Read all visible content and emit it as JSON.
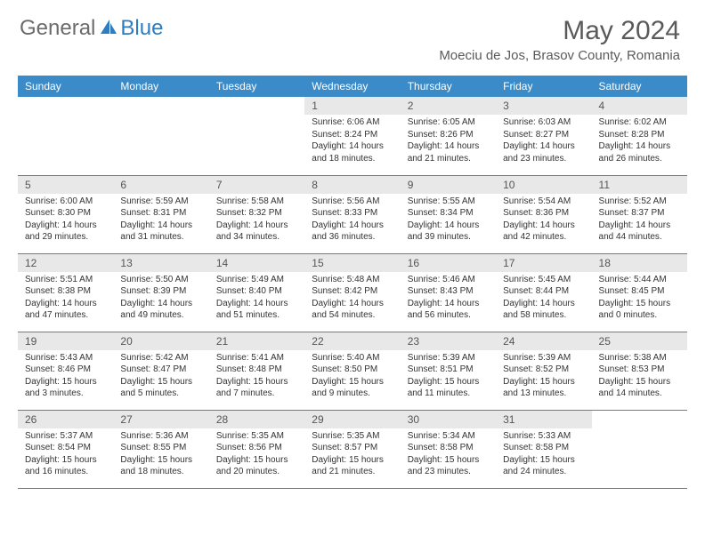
{
  "brand": {
    "part1": "General",
    "part2": "Blue"
  },
  "title": "May 2024",
  "location": "Moeciu de Jos, Brasov County, Romania",
  "colors": {
    "header_bg": "#3b8bc9",
    "header_text": "#ffffff",
    "daynum_bg": "#e8e8e8",
    "border": "#3b8bc9",
    "brand_gray": "#6b6b6b",
    "brand_blue": "#2f7dc0"
  },
  "fonts": {
    "title_size": 30,
    "location_size": 15,
    "header_size": 12,
    "daynum_size": 12,
    "body_size": 10
  },
  "weekdays": [
    "Sunday",
    "Monday",
    "Tuesday",
    "Wednesday",
    "Thursday",
    "Friday",
    "Saturday"
  ],
  "weeks": [
    [
      null,
      null,
      null,
      {
        "n": "1",
        "sr": "6:06 AM",
        "ss": "8:24 PM",
        "dl": "14 hours and 18 minutes."
      },
      {
        "n": "2",
        "sr": "6:05 AM",
        "ss": "8:26 PM",
        "dl": "14 hours and 21 minutes."
      },
      {
        "n": "3",
        "sr": "6:03 AM",
        "ss": "8:27 PM",
        "dl": "14 hours and 23 minutes."
      },
      {
        "n": "4",
        "sr": "6:02 AM",
        "ss": "8:28 PM",
        "dl": "14 hours and 26 minutes."
      }
    ],
    [
      {
        "n": "5",
        "sr": "6:00 AM",
        "ss": "8:30 PM",
        "dl": "14 hours and 29 minutes."
      },
      {
        "n": "6",
        "sr": "5:59 AM",
        "ss": "8:31 PM",
        "dl": "14 hours and 31 minutes."
      },
      {
        "n": "7",
        "sr": "5:58 AM",
        "ss": "8:32 PM",
        "dl": "14 hours and 34 minutes."
      },
      {
        "n": "8",
        "sr": "5:56 AM",
        "ss": "8:33 PM",
        "dl": "14 hours and 36 minutes."
      },
      {
        "n": "9",
        "sr": "5:55 AM",
        "ss": "8:34 PM",
        "dl": "14 hours and 39 minutes."
      },
      {
        "n": "10",
        "sr": "5:54 AM",
        "ss": "8:36 PM",
        "dl": "14 hours and 42 minutes."
      },
      {
        "n": "11",
        "sr": "5:52 AM",
        "ss": "8:37 PM",
        "dl": "14 hours and 44 minutes."
      }
    ],
    [
      {
        "n": "12",
        "sr": "5:51 AM",
        "ss": "8:38 PM",
        "dl": "14 hours and 47 minutes."
      },
      {
        "n": "13",
        "sr": "5:50 AM",
        "ss": "8:39 PM",
        "dl": "14 hours and 49 minutes."
      },
      {
        "n": "14",
        "sr": "5:49 AM",
        "ss": "8:40 PM",
        "dl": "14 hours and 51 minutes."
      },
      {
        "n": "15",
        "sr": "5:48 AM",
        "ss": "8:42 PM",
        "dl": "14 hours and 54 minutes."
      },
      {
        "n": "16",
        "sr": "5:46 AM",
        "ss": "8:43 PM",
        "dl": "14 hours and 56 minutes."
      },
      {
        "n": "17",
        "sr": "5:45 AM",
        "ss": "8:44 PM",
        "dl": "14 hours and 58 minutes."
      },
      {
        "n": "18",
        "sr": "5:44 AM",
        "ss": "8:45 PM",
        "dl": "15 hours and 0 minutes."
      }
    ],
    [
      {
        "n": "19",
        "sr": "5:43 AM",
        "ss": "8:46 PM",
        "dl": "15 hours and 3 minutes."
      },
      {
        "n": "20",
        "sr": "5:42 AM",
        "ss": "8:47 PM",
        "dl": "15 hours and 5 minutes."
      },
      {
        "n": "21",
        "sr": "5:41 AM",
        "ss": "8:48 PM",
        "dl": "15 hours and 7 minutes."
      },
      {
        "n": "22",
        "sr": "5:40 AM",
        "ss": "8:50 PM",
        "dl": "15 hours and 9 minutes."
      },
      {
        "n": "23",
        "sr": "5:39 AM",
        "ss": "8:51 PM",
        "dl": "15 hours and 11 minutes."
      },
      {
        "n": "24",
        "sr": "5:39 AM",
        "ss": "8:52 PM",
        "dl": "15 hours and 13 minutes."
      },
      {
        "n": "25",
        "sr": "5:38 AM",
        "ss": "8:53 PM",
        "dl": "15 hours and 14 minutes."
      }
    ],
    [
      {
        "n": "26",
        "sr": "5:37 AM",
        "ss": "8:54 PM",
        "dl": "15 hours and 16 minutes."
      },
      {
        "n": "27",
        "sr": "5:36 AM",
        "ss": "8:55 PM",
        "dl": "15 hours and 18 minutes."
      },
      {
        "n": "28",
        "sr": "5:35 AM",
        "ss": "8:56 PM",
        "dl": "15 hours and 20 minutes."
      },
      {
        "n": "29",
        "sr": "5:35 AM",
        "ss": "8:57 PM",
        "dl": "15 hours and 21 minutes."
      },
      {
        "n": "30",
        "sr": "5:34 AM",
        "ss": "8:58 PM",
        "dl": "15 hours and 23 minutes."
      },
      {
        "n": "31",
        "sr": "5:33 AM",
        "ss": "8:58 PM",
        "dl": "15 hours and 24 minutes."
      },
      null
    ]
  ],
  "labels": {
    "sunrise": "Sunrise:",
    "sunset": "Sunset:",
    "daylight": "Daylight:"
  }
}
